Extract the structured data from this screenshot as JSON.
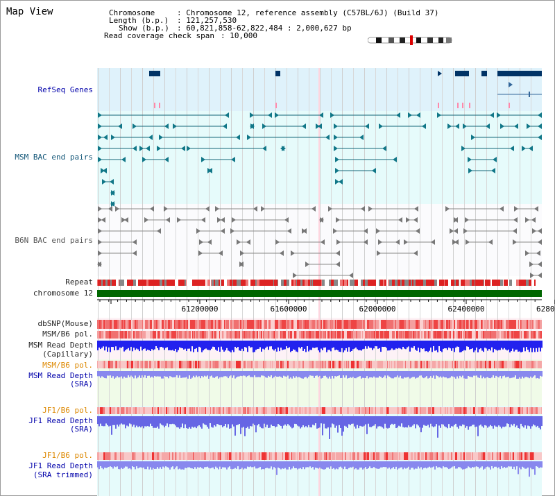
{
  "header": {
    "title": "Map View",
    "chromosome_label": "Chromosome",
    "chromosome_value": ": Chromosome 12, reference assembly (C57BL/6J) (Build 37)",
    "length_label": "Length (b.p.)",
    "length_value": ": 121,257,530",
    "show_label": "Show (b.p.)",
    "show_value": ": 60,821,858-62,822,484 : 2,000,627 bp",
    "coverage_label": "Read coverage check span",
    "coverage_value": ": 10,000"
  },
  "tracks": {
    "refseq": "RefSeq Genes",
    "msm_bac": "MSM BAC end pairs",
    "b6n_bac": "B6N BAC end pairs",
    "repeat": "Repeat",
    "chromosome": "chromosome 12",
    "dbsnp": "dbSNP(Mouse)",
    "msm_b6_pol_1": "MSM/B6 pol.",
    "msm_read_depth_cap_1": "MSM Read Depth",
    "msm_read_depth_cap_2": "(Capillary)",
    "msm_b6_pol_2": "MSM/B6 pol.",
    "msm_read_depth_sra_1": "MSM Read Depth",
    "msm_read_depth_sra_2": "(SRA)",
    "jf1_b6_pol_1": "JF1/B6 pol.",
    "jf1_read_depth_sra_1": "JF1 Read Depth",
    "jf1_read_depth_sra_2": "(SRA)",
    "jf1_b6_pol_2": "JF1/B6 pol.",
    "jf1_read_depth_trim_1": "JF1 Read Depth",
    "jf1_read_depth_trim_2": "(SRA trimmed)"
  },
  "axis": {
    "ticks": [
      "61200000",
      "61600000",
      "62000000",
      "62400000",
      "6280"
    ]
  },
  "colors": {
    "refseq_bg": "#dff2fb",
    "msm_bg": "#e6fbfb",
    "b6n_bg": "#f8f8fc",
    "msm_feature": "#116677",
    "b6n_feature": "#777777",
    "gene": "#003366",
    "chromosome_bar": "#006600",
    "depth_blue": "#2222ee",
    "pol_red": "#ee3333"
  }
}
